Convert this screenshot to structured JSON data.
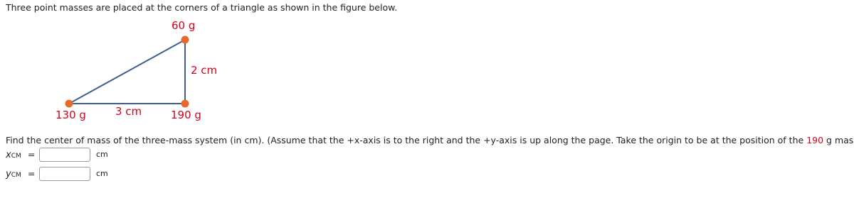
{
  "intro": "Three point masses are placed at the corners of a triangle as shown in the figure below.",
  "figure": {
    "top_mass": "60 g",
    "left_mass": "130 g",
    "right_mass": "190 g",
    "vertical_side": "2 cm",
    "horizontal_side": "3 cm"
  },
  "question": {
    "before": "Find the center of mass of the three-mass system (in cm). (Assume that the +x-axis is to the right and the +y-axis is up along the page. Take the origin to be at the position of the",
    "highlight": "190",
    "after": "g mass.)"
  },
  "answers": [
    {
      "symbol": "x",
      "subscript": "CM",
      "equals": "=",
      "unit": "cm"
    },
    {
      "symbol": "y",
      "subscript": "CM",
      "equals": "=",
      "unit": "cm"
    }
  ]
}
